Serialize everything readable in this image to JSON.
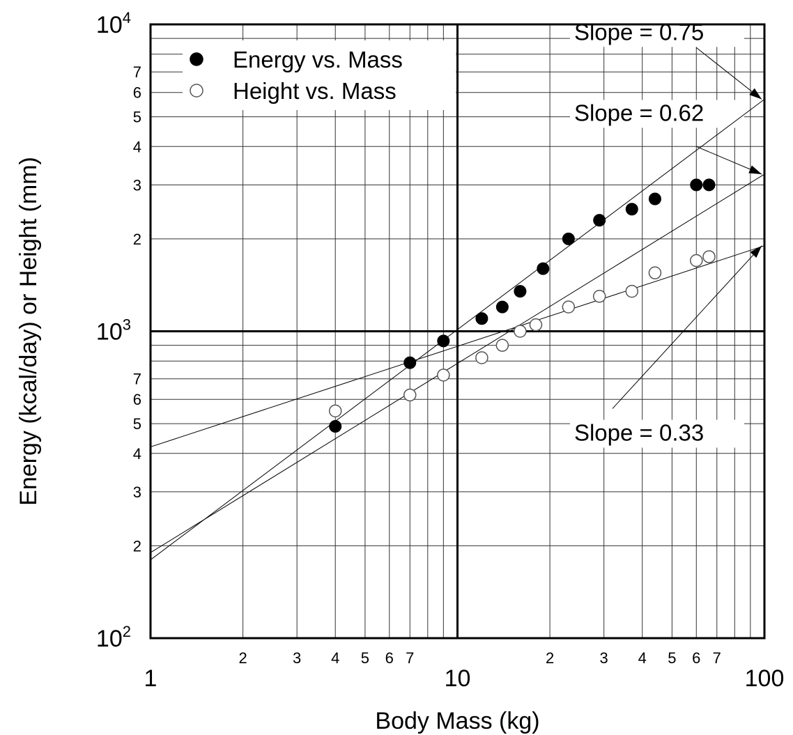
{
  "chart_data": {
    "type": "scatter",
    "xscale": "log",
    "yscale": "log",
    "xlim": [
      1,
      100
    ],
    "ylim": [
      100,
      10000
    ],
    "xlabel": "Body Mass (kg)",
    "ylabel": "Energy (kcal/day) or Height (mm)",
    "x_major_ticks": [
      {
        "value": 1,
        "label": "1"
      },
      {
        "value": 10,
        "label": "10"
      },
      {
        "value": 100,
        "label": "100"
      }
    ],
    "x_minor_ticks": [
      {
        "value": 2,
        "label": "2"
      },
      {
        "value": 3,
        "label": "3"
      },
      {
        "value": 4,
        "label": "4"
      },
      {
        "value": 5,
        "label": "5"
      },
      {
        "value": 6,
        "label": "6"
      },
      {
        "value": 7,
        "label": "7"
      },
      {
        "value": 8,
        "label": ""
      },
      {
        "value": 9,
        "label": ""
      },
      {
        "value": 20,
        "label": "2"
      },
      {
        "value": 30,
        "label": "3"
      },
      {
        "value": 40,
        "label": "4"
      },
      {
        "value": 50,
        "label": "5"
      },
      {
        "value": 60,
        "label": "6"
      },
      {
        "value": 70,
        "label": "7"
      },
      {
        "value": 80,
        "label": ""
      },
      {
        "value": 90,
        "label": ""
      }
    ],
    "y_major_ticks": [
      {
        "value": 100,
        "base": "10",
        "exp": "2"
      },
      {
        "value": 1000,
        "base": "10",
        "exp": "3"
      },
      {
        "value": 10000,
        "base": "10",
        "exp": "4"
      }
    ],
    "y_minor_ticks": [
      {
        "value": 200,
        "label": "2"
      },
      {
        "value": 300,
        "label": "3"
      },
      {
        "value": 400,
        "label": "4"
      },
      {
        "value": 500,
        "label": "5"
      },
      {
        "value": 600,
        "label": "6"
      },
      {
        "value": 700,
        "label": "7"
      },
      {
        "value": 800,
        "label": ""
      },
      {
        "value": 900,
        "label": ""
      },
      {
        "value": 2000,
        "label": "2"
      },
      {
        "value": 3000,
        "label": "3"
      },
      {
        "value": 4000,
        "label": "4"
      },
      {
        "value": 5000,
        "label": "5"
      },
      {
        "value": 6000,
        "label": "6"
      },
      {
        "value": 7000,
        "label": "7"
      },
      {
        "value": 8000,
        "label": ""
      },
      {
        "value": 9000,
        "label": ""
      }
    ],
    "series": [
      {
        "name": "Energy vs. Mass",
        "marker": "filled-circle",
        "points": [
          {
            "x": 4.0,
            "y": 490
          },
          {
            "x": 7.0,
            "y": 790
          },
          {
            "x": 9.0,
            "y": 930
          },
          {
            "x": 12.0,
            "y": 1100
          },
          {
            "x": 14.0,
            "y": 1200
          },
          {
            "x": 16.0,
            "y": 1350
          },
          {
            "x": 19.0,
            "y": 1600
          },
          {
            "x": 23.0,
            "y": 2000
          },
          {
            "x": 29.0,
            "y": 2300
          },
          {
            "x": 37.0,
            "y": 2500
          },
          {
            "x": 44.0,
            "y": 2700
          },
          {
            "x": 60.0,
            "y": 3000
          },
          {
            "x": 66.0,
            "y": 3000
          }
        ]
      },
      {
        "name": "Height vs. Mass",
        "marker": "open-circle",
        "points": [
          {
            "x": 4.0,
            "y": 550
          },
          {
            "x": 7.0,
            "y": 620
          },
          {
            "x": 9.0,
            "y": 720
          },
          {
            "x": 12.0,
            "y": 820
          },
          {
            "x": 14.0,
            "y": 900
          },
          {
            "x": 16.0,
            "y": 1000
          },
          {
            "x": 18.0,
            "y": 1050
          },
          {
            "x": 23.0,
            "y": 1200
          },
          {
            "x": 29.0,
            "y": 1300
          },
          {
            "x": 37.0,
            "y": 1350
          },
          {
            "x": 44.0,
            "y": 1550
          },
          {
            "x": 60.0,
            "y": 1700
          },
          {
            "x": 66.0,
            "y": 1750
          }
        ]
      }
    ],
    "fit_lines": [
      {
        "label": "Slope = 0.75",
        "slope": 0.75,
        "from": {
          "x": 1,
          "y": 180
        },
        "to": {
          "x": 100,
          "y": 5700
        }
      },
      {
        "label": "Slope = 0.62",
        "slope": 0.62,
        "from": {
          "x": 1,
          "y": 190
        },
        "to": {
          "x": 100,
          "y": 3250
        }
      },
      {
        "label": "Slope = 0.33",
        "slope": 0.33,
        "from": {
          "x": 1,
          "y": 420
        },
        "to": {
          "x": 100,
          "y": 1900
        }
      }
    ],
    "annotations": [
      {
        "text": "Slope = 0.75",
        "text_at": {
          "x": 24,
          "y": 8900
        },
        "arrow_from": {
          "x": 60,
          "y": 8400
        },
        "arrow_to": {
          "x": 98,
          "y": 5700
        }
      },
      {
        "text": "Slope = 0.62",
        "text_at": {
          "x": 24,
          "y": 4850
        },
        "arrow_from": {
          "x": 60,
          "y": 4000
        },
        "arrow_to": {
          "x": 98,
          "y": 3250
        }
      },
      {
        "text": "Slope = 0.33",
        "text_at": {
          "x": 24,
          "y": 440
        },
        "arrow_from": {
          "x": 32,
          "y": 560
        },
        "arrow_to": {
          "x": 98,
          "y": 1900
        }
      }
    ],
    "legend": {
      "position": "top-left",
      "entries": [
        {
          "label": "Energy vs. Mass",
          "marker": "filled-circle"
        },
        {
          "label": "Height vs. Mass",
          "marker": "open-circle"
        }
      ]
    },
    "grid": true
  }
}
